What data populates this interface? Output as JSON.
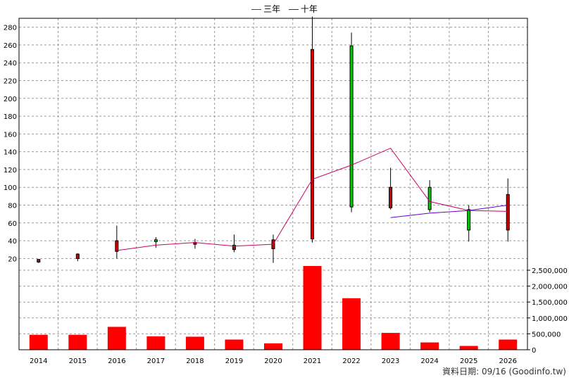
{
  "chart_data": {
    "type": "candlestick",
    "legend": [
      {
        "name": "三年",
        "color": "#cc0066"
      },
      {
        "name": "十年",
        "color": "#6600cc"
      }
    ],
    "years": [
      "2014",
      "2015",
      "2016",
      "2017",
      "2018",
      "2019",
      "2020",
      "2021",
      "2022",
      "2023",
      "2024",
      "2025",
      "2026"
    ],
    "price_axis": {
      "min": 10,
      "max": 290,
      "ticks": [
        20,
        40,
        60,
        80,
        100,
        120,
        140,
        160,
        180,
        200,
        220,
        240,
        260,
        280
      ]
    },
    "volume_axis": {
      "min": 0,
      "max": 2500000,
      "ticks": [
        0,
        500000,
        1000000,
        1500000,
        2000000,
        2500000
      ],
      "tick_labels": [
        "0",
        "500,000",
        "1,000,000",
        "1,500,000",
        "2,000,000",
        "2,500,000"
      ]
    },
    "candles": [
      {
        "year": "2014",
        "open": 19,
        "close": 16,
        "high": 19,
        "low": 15
      },
      {
        "year": "2015",
        "open": 25,
        "close": 20,
        "high": 26,
        "low": 17
      },
      {
        "year": "2016",
        "open": 40,
        "close": 28,
        "high": 57,
        "low": 20
      },
      {
        "year": "2017",
        "open": 39,
        "close": 41,
        "high": 44,
        "low": 32
      },
      {
        "year": "2018",
        "open": 38,
        "close": 36,
        "high": 42,
        "low": 31
      },
      {
        "year": "2019",
        "open": 35,
        "close": 30,
        "high": 47,
        "low": 27
      },
      {
        "year": "2020",
        "open": 41,
        "close": 31,
        "high": 47,
        "low": 15
      },
      {
        "year": "2021",
        "open": 255,
        "close": 42,
        "high": 292,
        "low": 38
      },
      {
        "year": "2022",
        "open": 78,
        "close": 259,
        "high": 274,
        "low": 72
      },
      {
        "year": "2023",
        "open": 100,
        "close": 77,
        "high": 122,
        "low": 75
      },
      {
        "year": "2024",
        "open": 75,
        "close": 100,
        "high": 108,
        "low": 72
      },
      {
        "year": "2025",
        "open": 52,
        "close": 75,
        "high": 80,
        "low": 39
      },
      {
        "year": "2026",
        "open": 92,
        "close": 52,
        "high": 110,
        "low": 39
      }
    ],
    "volume": [
      470000,
      470000,
      720000,
      420000,
      410000,
      320000,
      200000,
      2700000,
      1620000,
      530000,
      230000,
      120000,
      320000
    ],
    "series": [
      {
        "name": "三年",
        "color": "#cc0066",
        "x": [
          "2016",
          "2017",
          "2018",
          "2019",
          "2020",
          "2021",
          "2022",
          "2023",
          "2024",
          "2025",
          "2026"
        ],
        "values": [
          29,
          35,
          38,
          34,
          36,
          109,
          125,
          144,
          84,
          74,
          73
        ]
      },
      {
        "name": "十年",
        "color": "#6600cc",
        "x": [
          "2023",
          "2024",
          "2025",
          "2026"
        ],
        "values": [
          66,
          71,
          74,
          80
        ]
      }
    ],
    "grid": true,
    "legend_position": "top-center"
  },
  "footer": {
    "source": "資料日期: 09/16  (Goodinfo.tw)"
  }
}
